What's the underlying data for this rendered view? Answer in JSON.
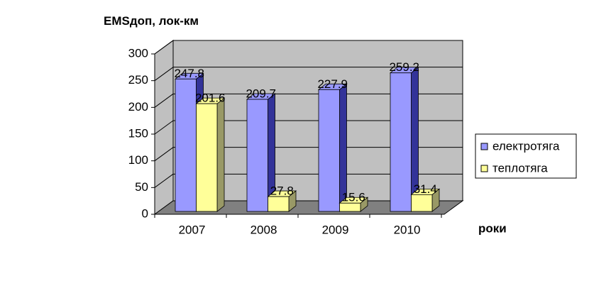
{
  "chart_data": {
    "type": "bar3d",
    "y_label": "EMSдоп, лок-км",
    "x_label": "роки",
    "categories": [
      "2007",
      "2008",
      "2009",
      "2010"
    ],
    "series": [
      {
        "name": "електротяга",
        "color": "#9999ff",
        "side": "#333399",
        "values": [
          247.8,
          209.7,
          227.9,
          259.2
        ]
      },
      {
        "name": "теплотяга",
        "color": "#ffff99",
        "side": "#999966",
        "values": [
          201.6,
          27.8,
          15.6,
          31.4
        ]
      }
    ],
    "ylim": [
      0,
      300
    ],
    "yticks": [
      0,
      50,
      100,
      150,
      200,
      250,
      300
    ],
    "grid": true
  }
}
